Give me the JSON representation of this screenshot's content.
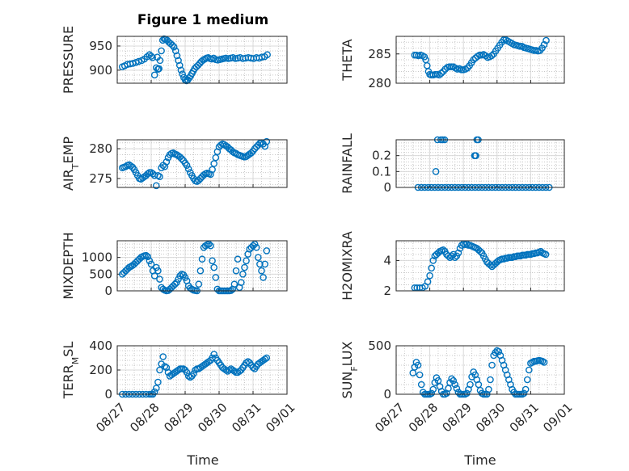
{
  "figure_title": "Figure 1 medium",
  "colors": {
    "marker": "#0072bd",
    "axis": "#262626",
    "grid": "#d9d9d9",
    "background": "#ffffff"
  },
  "x_axis": {
    "label": "Time",
    "ticks": [
      "08/27",
      "08/28",
      "08/29",
      "08/30",
      "08/31",
      "09/01"
    ],
    "range": [
      "08/27",
      "09/01"
    ]
  },
  "chart_data": [
    {
      "type": "scatter",
      "ylabel": "PRESSURE",
      "ylim": [
        873,
        970
      ],
      "yticks": [
        900,
        950
      ],
      "grid": "on",
      "x": [
        0.15,
        0.22,
        0.3,
        0.38,
        0.46,
        0.55,
        0.63,
        0.72,
        0.8,
        0.88,
        0.95,
        1.0,
        1.04,
        1.1,
        1.15,
        1.18,
        1.2,
        1.23,
        1.26,
        1.3,
        1.34,
        1.38,
        1.42,
        1.47,
        1.52,
        1.57,
        1.62,
        1.67,
        1.72,
        1.76,
        1.8,
        1.84,
        1.88,
        1.92,
        1.96,
        2.0,
        2.04,
        2.08,
        2.12,
        2.16,
        2.2,
        2.24,
        2.28,
        2.33,
        2.38,
        2.43,
        2.48,
        2.53,
        2.58,
        2.63,
        2.68,
        2.73,
        2.78,
        2.84,
        2.9,
        2.96,
        3.02,
        3.08,
        3.14,
        3.2,
        3.27,
        3.34,
        3.41,
        3.48,
        3.55,
        3.62,
        3.7,
        3.78,
        3.86,
        3.94,
        4.02,
        4.1,
        4.18,
        4.26,
        4.34,
        4.42
      ],
      "y": [
        907,
        909,
        912,
        913,
        914,
        916,
        918,
        920,
        923,
        928,
        932,
        929,
        926,
        890,
        905,
        927,
        902,
        903,
        920,
        940,
        962,
        965,
        964,
        962,
        958,
        955,
        952,
        948,
        940,
        930,
        920,
        910,
        900,
        892,
        885,
        880,
        878,
        880,
        884,
        888,
        893,
        898,
        903,
        907,
        910,
        914,
        918,
        921,
        923,
        925,
        926,
        924,
        923,
        925,
        922,
        921,
        922,
        923,
        924,
        925,
        924,
        925,
        926,
        924,
        925,
        926,
        924,
        925,
        926,
        925,
        924,
        926,
        925,
        927,
        928,
        932
      ]
    },
    {
      "type": "scatter",
      "ylabel": "THETA",
      "ylim": [
        280,
        288
      ],
      "yticks": [
        280,
        285
      ],
      "grid": "on",
      "x": [
        0.55,
        0.6,
        0.66,
        0.72,
        0.78,
        0.84,
        0.88,
        0.92,
        0.96,
        1.0,
        1.05,
        1.1,
        1.16,
        1.22,
        1.28,
        1.34,
        1.4,
        1.46,
        1.52,
        1.58,
        1.64,
        1.7,
        1.76,
        1.82,
        1.88,
        1.94,
        2.0,
        2.06,
        2.12,
        2.18,
        2.24,
        2.3,
        2.36,
        2.42,
        2.48,
        2.54,
        2.6,
        2.66,
        2.72,
        2.78,
        2.84,
        2.9,
        2.96,
        3.02,
        3.08,
        3.14,
        3.2,
        3.26,
        3.32,
        3.38,
        3.44,
        3.5,
        3.56,
        3.62,
        3.68,
        3.74,
        3.8,
        3.86,
        3.92,
        3.98,
        4.04,
        4.1,
        4.16,
        4.22,
        4.28,
        4.34,
        4.4,
        4.46
      ],
      "y": [
        284.8,
        284.8,
        284.7,
        284.8,
        284.7,
        284.5,
        284.0,
        283.0,
        282.0,
        281.5,
        281.4,
        281.4,
        281.5,
        281.5,
        281.4,
        281.7,
        282.0,
        282.4,
        282.7,
        282.8,
        282.8,
        282.8,
        282.6,
        282.4,
        282.5,
        282.3,
        282.3,
        282.4,
        282.6,
        283.0,
        283.5,
        284.0,
        284.3,
        284.6,
        284.8,
        284.8,
        284.9,
        284.7,
        284.4,
        284.5,
        284.7,
        285.0,
        285.5,
        286.0,
        286.5,
        287.0,
        287.4,
        287.4,
        287.2,
        287.0,
        286.8,
        286.6,
        286.5,
        286.4,
        286.3,
        286.3,
        286.1,
        286.0,
        285.9,
        285.8,
        285.7,
        285.6,
        285.6,
        285.5,
        285.6,
        286.0,
        286.6,
        287.3
      ]
    },
    {
      "type": "scatter",
      "ylabel": "AIR_TEMP",
      "ylim": [
        273.5,
        281.5
      ],
      "yticks": [
        275,
        280
      ],
      "grid": "on",
      "x": [
        0.15,
        0.2,
        0.25,
        0.3,
        0.35,
        0.4,
        0.45,
        0.5,
        0.55,
        0.6,
        0.65,
        0.7,
        0.75,
        0.8,
        0.85,
        0.9,
        0.95,
        1.0,
        1.05,
        1.1,
        1.15,
        1.2,
        1.25,
        1.3,
        1.35,
        1.4,
        1.45,
        1.5,
        1.55,
        1.6,
        1.65,
        1.7,
        1.75,
        1.8,
        1.85,
        1.9,
        1.95,
        2.0,
        2.05,
        2.1,
        2.15,
        2.2,
        2.25,
        2.3,
        2.35,
        2.4,
        2.45,
        2.5,
        2.55,
        2.6,
        2.65,
        2.7,
        2.75,
        2.8,
        2.85,
        2.9,
        2.95,
        3.0,
        3.05,
        3.1,
        3.15,
        3.2,
        3.25,
        3.3,
        3.35,
        3.4,
        3.45,
        3.5,
        3.55,
        3.6,
        3.65,
        3.7,
        3.75,
        3.8,
        3.85,
        3.9,
        3.95,
        4.0,
        4.05,
        4.1,
        4.15,
        4.2,
        4.25,
        4.3,
        4.35,
        4.4
      ],
      "y": [
        276.8,
        276.9,
        277.0,
        277.2,
        277.3,
        277.1,
        276.9,
        276.5,
        276.0,
        275.5,
        275.0,
        274.9,
        275.1,
        275.3,
        275.5,
        275.8,
        276.0,
        276.0,
        275.8,
        275.5,
        273.8,
        275.5,
        275.3,
        276.8,
        277.2,
        277.0,
        277.8,
        278.5,
        279.0,
        279.2,
        279.3,
        279.1,
        279.0,
        278.8,
        278.6,
        278.3,
        278.0,
        277.6,
        277.2,
        276.6,
        276.0,
        275.5,
        275.0,
        274.6,
        274.5,
        274.7,
        275.0,
        275.3,
        275.6,
        275.8,
        275.9,
        275.8,
        275.7,
        276.5,
        277.5,
        278.5,
        279.5,
        280.3,
        280.6,
        280.8,
        280.7,
        280.5,
        280.3,
        280.0,
        279.8,
        279.5,
        279.3,
        279.2,
        279.0,
        278.9,
        278.8,
        278.7,
        278.6,
        278.7,
        278.9,
        279.1,
        279.3,
        279.6,
        280.0,
        280.3,
        280.6,
        280.9,
        281.0,
        280.8,
        280.4,
        281.2
      ]
    },
    {
      "type": "scatter",
      "ylabel": "RAINFALL",
      "ylim": [
        0,
        0.3
      ],
      "yticks": [
        0,
        0.1,
        0.2
      ],
      "grid": "on",
      "x": [
        0.65,
        0.75,
        0.85,
        0.95,
        1.05,
        1.15,
        1.25,
        1.35,
        1.45,
        1.55,
        1.65,
        1.75,
        1.85,
        1.95,
        2.05,
        2.15,
        2.25,
        2.35,
        2.45,
        2.55,
        2.65,
        2.75,
        2.85,
        2.95,
        3.05,
        3.15,
        3.25,
        3.35,
        3.45,
        3.55,
        3.65,
        3.75,
        3.85,
        3.95,
        4.05,
        4.15,
        4.25,
        4.35,
        4.45,
        4.55,
        1.18,
        1.23,
        1.33,
        1.38,
        1.44,
        2.33,
        2.35,
        2.37,
        2.4,
        2.44
      ],
      "y": [
        0,
        0,
        0,
        0,
        0,
        0,
        0,
        0,
        0,
        0,
        0,
        0,
        0,
        0,
        0,
        0,
        0,
        0,
        0,
        0,
        0,
        0,
        0,
        0,
        0,
        0,
        0,
        0,
        0,
        0,
        0,
        0,
        0,
        0,
        0,
        0,
        0,
        0,
        0,
        0,
        0.1,
        0.3,
        0.3,
        0.3,
        0.3,
        0.2,
        0.2,
        0.2,
        0.3,
        0.3
      ]
    },
    {
      "type": "scatter",
      "ylabel": "MIXDEPTH",
      "ylim": [
        0,
        1500
      ],
      "yticks": [
        0,
        500,
        1000
      ],
      "grid": "on",
      "x": [
        0.15,
        0.2,
        0.25,
        0.3,
        0.35,
        0.4,
        0.45,
        0.5,
        0.55,
        0.6,
        0.65,
        0.7,
        0.75,
        0.8,
        0.85,
        0.9,
        0.95,
        1.0,
        1.05,
        1.1,
        1.15,
        1.2,
        1.25,
        1.3,
        1.35,
        1.4,
        1.45,
        1.5,
        1.55,
        1.6,
        1.65,
        1.7,
        1.75,
        1.8,
        1.85,
        1.9,
        1.95,
        2.0,
        2.05,
        2.1,
        2.15,
        2.2,
        2.25,
        2.3,
        2.35,
        2.4,
        2.45,
        2.5,
        2.55,
        2.6,
        2.65,
        2.7,
        2.75,
        2.8,
        2.85,
        2.9,
        2.95,
        3.0,
        3.05,
        3.1,
        3.15,
        3.2,
        3.25,
        3.3,
        3.35,
        3.4,
        3.45,
        3.5,
        3.55,
        3.6,
        3.65,
        3.7,
        3.75,
        3.8,
        3.85,
        3.9,
        3.95,
        4.0,
        4.05,
        4.1,
        4.15,
        4.2,
        4.25,
        4.3,
        4.35,
        4.4
      ],
      "y": [
        500,
        550,
        600,
        650,
        700,
        730,
        760,
        800,
        850,
        900,
        950,
        1000,
        1030,
        1050,
        1060,
        1020,
        900,
        800,
        600,
        450,
        700,
        600,
        350,
        100,
        50,
        20,
        0,
        10,
        50,
        100,
        150,
        200,
        250,
        350,
        450,
        500,
        480,
        400,
        300,
        150,
        80,
        50,
        20,
        10,
        0,
        200,
        600,
        950,
        1300,
        1350,
        1380,
        1400,
        1350,
        900,
        700,
        400,
        50,
        0,
        0,
        0,
        0,
        0,
        0,
        0,
        10,
        50,
        200,
        600,
        950,
        100,
        250,
        500,
        700,
        900,
        1100,
        1250,
        1300,
        1350,
        1400,
        1300,
        1000,
        800,
        600,
        400,
        800,
        1200
      ],
      "note_shape": "diurnal"
    },
    {
      "type": "scatter",
      "ylabel": "H2OMIXRA",
      "ylim": [
        2,
        5.3
      ],
      "yticks": [
        2,
        4
      ],
      "grid": "on",
      "x": [
        0.55,
        0.62,
        0.7,
        0.78,
        0.86,
        0.94,
        1.0,
        1.05,
        1.1,
        1.15,
        1.2,
        1.25,
        1.3,
        1.35,
        1.4,
        1.45,
        1.5,
        1.55,
        1.6,
        1.65,
        1.7,
        1.75,
        1.8,
        1.85,
        1.9,
        1.95,
        2.0,
        2.05,
        2.1,
        2.15,
        2.2,
        2.25,
        2.3,
        2.35,
        2.4,
        2.45,
        2.5,
        2.55,
        2.6,
        2.65,
        2.7,
        2.75,
        2.8,
        2.85,
        2.9,
        2.95,
        3.0,
        3.05,
        3.1,
        3.15,
        3.2,
        3.25,
        3.3,
        3.35,
        3.4,
        3.45,
        3.5,
        3.55,
        3.6,
        3.65,
        3.7,
        3.75,
        3.8,
        3.85,
        3.9,
        3.95,
        4.0,
        4.05,
        4.1,
        4.15,
        4.2,
        4.25,
        4.3,
        4.35,
        4.4,
        4.45
      ],
      "y": [
        2.2,
        2.2,
        2.2,
        2.2,
        2.3,
        2.6,
        3.0,
        3.5,
        4.0,
        4.3,
        4.4,
        4.5,
        4.6,
        4.65,
        4.7,
        4.6,
        4.4,
        4.3,
        4.2,
        4.3,
        4.4,
        4.2,
        4.3,
        4.5,
        4.8,
        5.0,
        5.1,
        5.05,
        5.1,
        5.0,
        5.0,
        4.95,
        4.9,
        4.85,
        4.8,
        4.7,
        4.6,
        4.5,
        4.3,
        4.1,
        3.9,
        3.8,
        3.7,
        3.6,
        3.7,
        3.8,
        3.9,
        4.0,
        4.05,
        4.1,
        4.1,
        4.15,
        4.15,
        4.2,
        4.2,
        4.2,
        4.25,
        4.25,
        4.3,
        4.3,
        4.3,
        4.35,
        4.35,
        4.35,
        4.4,
        4.4,
        4.4,
        4.45,
        4.45,
        4.5,
        4.5,
        4.55,
        4.6,
        4.5,
        4.45,
        4.4
      ],
      "note_shape": "humidity"
    },
    {
      "type": "scatter",
      "ylabel": "TERR_MSL",
      "ylim": [
        0,
        400
      ],
      "yticks": [
        0,
        200,
        400
      ],
      "grid": "on",
      "x": [
        0.15,
        0.25,
        0.35,
        0.45,
        0.55,
        0.65,
        0.75,
        0.85,
        0.95,
        1.0,
        1.05,
        1.1,
        1.15,
        1.2,
        1.25,
        1.3,
        1.35,
        1.4,
        1.45,
        1.5,
        1.55,
        1.6,
        1.65,
        1.7,
        1.75,
        1.8,
        1.85,
        1.9,
        1.95,
        2.0,
        2.05,
        2.1,
        2.15,
        2.2,
        2.25,
        2.3,
        2.35,
        2.4,
        2.45,
        2.5,
        2.55,
        2.6,
        2.65,
        2.7,
        2.75,
        2.8,
        2.85,
        2.9,
        2.95,
        3.0,
        3.05,
        3.1,
        3.15,
        3.2,
        3.25,
        3.3,
        3.35,
        3.4,
        3.45,
        3.5,
        3.55,
        3.6,
        3.65,
        3.7,
        3.75,
        3.8,
        3.85,
        3.9,
        3.95,
        4.0,
        4.05,
        4.1,
        4.15,
        4.2,
        4.25,
        4.3,
        4.35,
        4.4
      ],
      "y": [
        0,
        0,
        0,
        0,
        0,
        0,
        0,
        0,
        0,
        0,
        0,
        20,
        50,
        100,
        200,
        250,
        310,
        230,
        220,
        180,
        150,
        160,
        170,
        180,
        190,
        200,
        210,
        210,
        210,
        200,
        180,
        150,
        140,
        150,
        170,
        200,
        210,
        210,
        220,
        230,
        240,
        250,
        260,
        270,
        280,
        300,
        330,
        300,
        280,
        260,
        240,
        220,
        210,
        200,
        190,
        200,
        210,
        200,
        190,
        180,
        180,
        190,
        200,
        220,
        240,
        260,
        270,
        260,
        240,
        220,
        210,
        230,
        250,
        260,
        270,
        280,
        290,
        300
      ]
    },
    {
      "type": "scatter",
      "ylabel": "SUN_FLUX",
      "ylim": [
        0,
        500
      ],
      "yticks": [
        0,
        500
      ],
      "grid": "on",
      "x": [
        0.5,
        0.55,
        0.6,
        0.65,
        0.7,
        0.75,
        0.8,
        0.85,
        0.9,
        0.95,
        1.0,
        1.05,
        1.1,
        1.15,
        1.2,
        1.25,
        1.3,
        1.35,
        1.4,
        1.45,
        1.5,
        1.55,
        1.6,
        1.65,
        1.7,
        1.75,
        1.8,
        1.85,
        1.9,
        1.95,
        2.0,
        2.05,
        2.1,
        2.15,
        2.2,
        2.25,
        2.3,
        2.35,
        2.4,
        2.45,
        2.5,
        2.55,
        2.6,
        2.65,
        2.7,
        2.75,
        2.8,
        2.85,
        2.9,
        2.95,
        3.0,
        3.05,
        3.1,
        3.15,
        3.2,
        3.25,
        3.3,
        3.35,
        3.4,
        3.45,
        3.5,
        3.55,
        3.6,
        3.65,
        3.7,
        3.75,
        3.8,
        3.85,
        3.9,
        3.95,
        4.0,
        4.05,
        4.1,
        4.15,
        4.2,
        4.25,
        4.3,
        4.35,
        4.4
      ],
      "y": [
        220,
        280,
        330,
        300,
        200,
        100,
        20,
        0,
        0,
        0,
        0,
        10,
        50,
        120,
        170,
        140,
        80,
        30,
        0,
        0,
        10,
        60,
        120,
        160,
        140,
        100,
        60,
        20,
        0,
        0,
        0,
        0,
        10,
        50,
        100,
        180,
        230,
        200,
        150,
        100,
        40,
        10,
        0,
        0,
        0,
        50,
        150,
        300,
        400,
        430,
        450,
        440,
        400,
        350,
        300,
        250,
        200,
        150,
        100,
        50,
        20,
        0,
        0,
        0,
        0,
        0,
        10,
        50,
        150,
        250,
        320,
        330,
        340,
        340,
        345,
        350,
        345,
        340,
        330
      ]
    }
  ]
}
